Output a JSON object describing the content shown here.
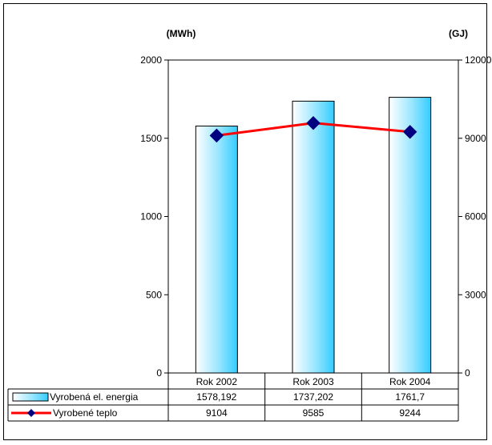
{
  "chart_data": {
    "type": "bar",
    "categories": [
      "Rok 2002",
      "Rok 2003",
      "Rok 2004"
    ],
    "left_axis": {
      "unit": "(MWh)",
      "ylim": [
        0,
        2000
      ],
      "ticks": [
        "0",
        "500",
        "1000",
        "1500",
        "2000"
      ]
    },
    "right_axis": {
      "unit": "(GJ)",
      "ylim": [
        0,
        12000
      ],
      "ticks": [
        "0",
        "3000",
        "6000",
        "9000",
        "12000"
      ]
    },
    "series": [
      {
        "name": "Vyrobená el. energia",
        "type": "bar",
        "axis": "left",
        "values": [
          1578.192,
          1737.202,
          1761.7
        ],
        "labels": [
          "1578,192",
          "1737,202",
          "1761,7"
        ]
      },
      {
        "name": "Vyrobené teplo",
        "type": "line",
        "axis": "right",
        "values": [
          9104,
          9585,
          9244
        ],
        "labels": [
          "9104",
          "9585",
          "9244"
        ]
      }
    ],
    "grid": false,
    "legend": "data-table",
    "colors": {
      "bar_fill_light": "#ffffff",
      "bar_fill_dark": "#33ccff",
      "line": "#ff0000",
      "marker": "#000080"
    }
  }
}
